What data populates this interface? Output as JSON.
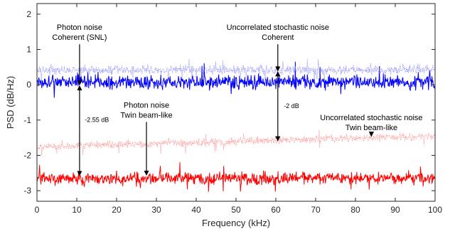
{
  "chart_data": {
    "type": "line",
    "xlabel": "Frequency (kHz)",
    "ylabel": "PSD (dB/Hz)",
    "xlim": [
      0,
      100
    ],
    "ylim": [
      -3.3,
      2.3
    ],
    "xticks": [
      0,
      10,
      20,
      30,
      40,
      50,
      60,
      70,
      80,
      90,
      100
    ],
    "yticks": [
      -3,
      -2,
      -1,
      0,
      1,
      2
    ],
    "grid": false,
    "legend": "none",
    "series": [
      {
        "role": "photon-noise-coherent",
        "color": "#0000ff",
        "style": "solid",
        "mean_db": 0.08,
        "spread_db": 0.18,
        "x_range": [
          0,
          100
        ]
      },
      {
        "role": "uncorrelated-noise-coherent",
        "color": "#8c8cff",
        "style": "dotted",
        "mean_db": 0.42,
        "spread_db": 0.12,
        "x_range": [
          0,
          100
        ]
      },
      {
        "role": "photon-noise-twin-beam",
        "color": "#ff0000",
        "style": "solid",
        "mean_db": -2.65,
        "spread_db": 0.16,
        "x_range": [
          0,
          100
        ]
      },
      {
        "role": "uncorrelated-noise-twin-beam",
        "color": "#ff8c8c",
        "style": "dotted",
        "mean_db": -1.75,
        "trend_end_db": -1.45,
        "spread_db": 0.1,
        "x_range": [
          0,
          100
        ]
      }
    ],
    "annotations": [
      {
        "lines": [
          "Photon noise",
          "Coherent (SNL)"
        ],
        "x": 10.7,
        "y": 1.55,
        "arrow_to": [
          10.7,
          0.0
        ]
      },
      {
        "lines": [
          "Uncorrelated stochastic noise",
          "Coherent"
        ],
        "x": 60.5,
        "y": 1.55,
        "arrow_to": [
          60.5,
          0.4
        ]
      },
      {
        "lines": [
          "Photon noise",
          "Twin beam-like"
        ],
        "x": 27.5,
        "y": -0.65,
        "arrow_to": [
          27.5,
          -2.55
        ]
      },
      {
        "lines": [
          "Uncorrelated stochastic noise",
          "Twin beam-like"
        ],
        "x": 84.0,
        "y": -1.0,
        "arrow_to": [
          84.0,
          -1.45
        ]
      },
      {
        "lines": [
          "-2.55 dB"
        ],
        "x": 12.0,
        "y": -1.05
      },
      {
        "lines": [
          "-2 dB"
        ],
        "x": 62.0,
        "y": -0.66
      }
    ],
    "double_arrows": [
      {
        "x": 10.7,
        "y1": 0.0,
        "y2": -2.6
      },
      {
        "x": 60.5,
        "y1": 0.4,
        "y2": -1.62
      }
    ]
  }
}
